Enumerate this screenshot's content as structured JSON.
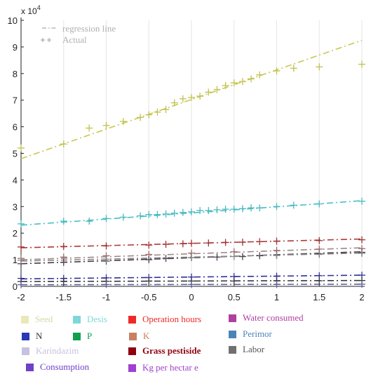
{
  "chart_data": {
    "type": "line",
    "multiplier_label": "x 10",
    "multiplier_exponent": "4",
    "xlim": [
      -2,
      2
    ],
    "ylim": [
      0,
      10
    ],
    "x_ticks": [
      "-2",
      "-1.5",
      "-1",
      "-0.5",
      "0",
      "0.5",
      "1",
      "1.5",
      "2"
    ],
    "y_ticks": [
      "0",
      "1",
      "2",
      "3",
      "4",
      "5",
      "6",
      "7",
      "8",
      "9",
      "10"
    ],
    "inner_legend": [
      {
        "label": "regression line",
        "style": "dash-dot"
      },
      {
        "label": "Actual",
        "style": "plus-marker"
      }
    ],
    "legend": [
      {
        "label": "Seed",
        "color": "#e8e8b8"
      },
      {
        "label": "Desis",
        "color": "#7fd8d8"
      },
      {
        "label": "Operation hours",
        "color": "#f02828"
      },
      {
        "label": "Water consumed",
        "color": "#b040a0"
      },
      {
        "label": "N",
        "color": "#2838b8"
      },
      {
        "label": "P",
        "color": "#10a050"
      },
      {
        "label": "K",
        "color": "#c88060"
      },
      {
        "label": "Perimor",
        "color": "#4c84b8"
      },
      {
        "label": "Karindazim",
        "color": "#c8c0e0"
      },
      {
        "label": "Grass pestiside",
        "color": "#900010"
      },
      {
        "label": "Labor",
        "color": "#707070"
      },
      {
        "label": "Consumption",
        "color": "#7040c8"
      },
      {
        "label": "Kg per hectar e",
        "color": "#a040d0"
      }
    ],
    "series": [
      {
        "line_color": "#c8c850",
        "marker_color": "#c0c050",
        "line": [
          4.8,
          9.25
        ],
        "x": [
          -2,
          -1.5,
          -1.2,
          -1,
          -0.8,
          -0.6,
          -0.5,
          -0.4,
          -0.3,
          -0.2,
          -0.1,
          0,
          0.1,
          0.2,
          0.3,
          0.4,
          0.5,
          0.6,
          0.7,
          0.8,
          1,
          1.2,
          1.5,
          2
        ],
        "y": [
          5.2,
          5.35,
          5.95,
          6.05,
          6.2,
          6.35,
          6.45,
          6.55,
          6.65,
          6.9,
          7.05,
          7.1,
          7.15,
          7.3,
          7.4,
          7.55,
          7.65,
          7.7,
          7.8,
          7.95,
          8.1,
          8.2,
          8.25,
          8.35
        ]
      },
      {
        "line_color": "#48c0c8",
        "marker_color": "#48b8c0",
        "line": [
          2.3,
          3.22
        ],
        "x": [
          -2,
          -1.5,
          -1.2,
          -1,
          -0.8,
          -0.6,
          -0.5,
          -0.4,
          -0.3,
          -0.2,
          -0.1,
          0,
          0.1,
          0.2,
          0.3,
          0.4,
          0.5,
          0.6,
          0.7,
          0.8,
          1,
          1.2,
          1.5,
          2
        ],
        "y": [
          2.35,
          2.45,
          2.45,
          2.55,
          2.6,
          2.65,
          2.7,
          2.7,
          2.72,
          2.75,
          2.78,
          2.8,
          2.85,
          2.85,
          2.88,
          2.9,
          2.9,
          2.92,
          2.95,
          2.95,
          3.0,
          3.05,
          3.1,
          3.2
        ]
      },
      {
        "line_color": "#b03838",
        "marker_color": "#a03030",
        "line": [
          1.45,
          1.78
        ],
        "x": [
          -2,
          -1.5,
          -1,
          -0.5,
          -0.3,
          -0.1,
          0,
          0.2,
          0.4,
          0.6,
          0.8,
          1,
          1.5,
          2
        ],
        "y": [
          1.48,
          1.5,
          1.52,
          1.55,
          1.58,
          1.6,
          1.62,
          1.63,
          1.65,
          1.66,
          1.68,
          1.7,
          1.72,
          1.75
        ]
      },
      {
        "line_color": "#a08888",
        "marker_color": "#a06868",
        "line": [
          1.0,
          1.45
        ],
        "x": [
          -2,
          -1.5,
          -1,
          -0.5,
          0,
          0.5,
          1,
          1.5,
          2
        ],
        "y": [
          1.05,
          1.1,
          1.15,
          1.2,
          1.25,
          1.3,
          1.35,
          1.4,
          1.42
        ]
      },
      {
        "line_color": "#403840",
        "marker_color": "#504050",
        "line": [
          0.85,
          1.3
        ],
        "x": [
          -2,
          -1.5,
          -1,
          -0.5,
          -0.3,
          0,
          0.3,
          0.6,
          0.8,
          1,
          1.5,
          2
        ],
        "y": [
          0.85,
          0.9,
          0.95,
          1.0,
          1.05,
          1.08,
          1.1,
          1.12,
          1.15,
          1.18,
          1.22,
          1.28
        ]
      },
      {
        "line_color": "#8a8a8a",
        "marker_color": "#888888",
        "line": [
          0.95,
          1.25
        ],
        "x": [
          -2,
          -1,
          0,
          0.5,
          1,
          1.5,
          2
        ],
        "y": [
          0.98,
          1.02,
          1.08,
          1.12,
          1.16,
          1.2,
          1.24
        ]
      },
      {
        "line_color": "#3030a0",
        "marker_color": "#3030a0",
        "line": [
          0.28,
          0.42
        ],
        "x": [
          -2,
          -1.5,
          -1,
          -0.5,
          0,
          0.5,
          1,
          1.5,
          2
        ],
        "y": [
          0.3,
          0.3,
          0.32,
          0.33,
          0.35,
          0.37,
          0.38,
          0.4,
          0.42
        ]
      },
      {
        "line_color": "#383838",
        "marker_color": "#383838",
        "line": [
          0.18,
          0.22
        ],
        "x": [
          -2,
          -1.5,
          -1,
          -0.5,
          0,
          0.5,
          1,
          1.5,
          2
        ],
        "y": [
          0.18,
          0.19,
          0.19,
          0.2,
          0.2,
          0.2,
          0.21,
          0.21,
          0.22
        ]
      },
      {
        "line_color": "#6060a0",
        "marker_color": "#6060a0",
        "line": [
          0.06,
          0.08
        ],
        "x": [
          -2,
          -1,
          0,
          1,
          2
        ],
        "y": [
          0.06,
          0.07,
          0.07,
          0.07,
          0.08
        ]
      }
    ]
  }
}
